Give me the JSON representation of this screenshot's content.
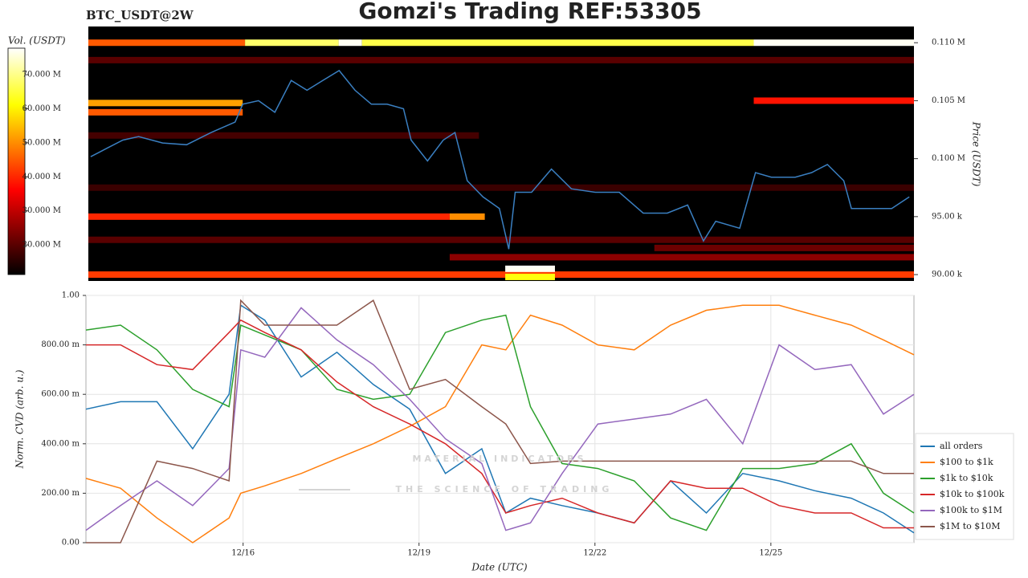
{
  "header": {
    "title": "Gomzi's Trading REF:53305",
    "subtitle": "BTC_USDT@2W"
  },
  "watermark": {
    "name": "MATERIAL INDICATORS",
    "tagline": "THE SCIENCE OF TRADING"
  },
  "chart_data": [
    {
      "type": "heatmap",
      "xlim": [
        13.32,
        27.44
      ],
      "ylim": [
        89450,
        111400
      ],
      "y_label": "Price (USDT)",
      "yticks": [
        {
          "value": 90000,
          "label": "90.00 k"
        },
        {
          "value": 95000,
          "label": "95.00 k"
        },
        {
          "value": 100000,
          "label": "0.100 M"
        },
        {
          "value": 105000,
          "label": "0.105 M"
        },
        {
          "value": 110000,
          "label": "0.110 M"
        }
      ],
      "colorbar": {
        "label": "Vol. (USDT)",
        "colormap": "hot",
        "clim": [
          11300000,
          77800000
        ],
        "ticks": [
          {
            "value": 20000000,
            "label": "20.000 M"
          },
          {
            "value": 30000000,
            "label": "30.000 M"
          },
          {
            "value": 40000000,
            "label": "40.000 M"
          },
          {
            "value": 50000000,
            "label": "50.000 M"
          },
          {
            "value": 60000000,
            "label": "60.000 M"
          },
          {
            "value": 70000000,
            "label": "70.000 M"
          }
        ]
      },
      "cells": [
        {
          "price": 108500,
          "x_start": 13.32,
          "x_end": 27.44,
          "value": 20000000
        },
        {
          "price": 102000,
          "x_start": 13.32,
          "x_end": 20.0,
          "value": 18000000
        },
        {
          "price": 97500,
          "x_start": 13.32,
          "x_end": 27.44,
          "value": 17000000
        },
        {
          "price": 93000,
          "x_start": 13.32,
          "x_end": 27.44,
          "value": 20000000
        },
        {
          "price": 91500,
          "x_start": 19.5,
          "x_end": 27.44,
          "value": 25000000
        },
        {
          "price": 92300,
          "x_start": 23.0,
          "x_end": 27.44,
          "value": 22000000
        },
        {
          "price": 110000,
          "x_start": 13.32,
          "x_end": 16.0,
          "value": 45000000
        },
        {
          "price": 110000,
          "x_start": 16.0,
          "x_end": 17.6,
          "value": 68000000
        },
        {
          "price": 110000,
          "x_start": 17.6,
          "x_end": 18.0,
          "value": 77000000
        },
        {
          "price": 110000,
          "x_start": 18.0,
          "x_end": 24.7,
          "value": 66000000
        },
        {
          "price": 110000,
          "x_start": 24.7,
          "x_end": 27.44,
          "value": 77000000
        },
        {
          "price": 104800,
          "x_start": 13.32,
          "x_end": 15.96,
          "value": 52000000
        },
        {
          "price": 104000,
          "x_start": 13.32,
          "x_end": 15.96,
          "value": 45000000
        },
        {
          "price": 105000,
          "x_start": 24.7,
          "x_end": 27.44,
          "value": 38000000
        },
        {
          "price": 95000,
          "x_start": 13.32,
          "x_end": 19.5,
          "value": 40000000
        },
        {
          "price": 95000,
          "x_start": 19.5,
          "x_end": 20.1,
          "value": 50000000
        },
        {
          "price": 90000,
          "x_start": 13.32,
          "x_end": 27.44,
          "value": 42000000
        },
        {
          "price": 90500,
          "x_start": 20.45,
          "x_end": 21.3,
          "value": 77000000
        },
        {
          "price": 89800,
          "x_start": 20.45,
          "x_end": 21.3,
          "value": 62000000
        }
      ],
      "series": [
        {
          "color": "#3a7fc1",
          "x": [
            13.36,
            13.64,
            13.91,
            14.18,
            14.59,
            15.0,
            15.42,
            15.83,
            15.96,
            16.23,
            16.51,
            16.79,
            17.06,
            17.33,
            17.61,
            17.88,
            18.16,
            18.43,
            18.71,
            18.84,
            19.12,
            19.39,
            19.59,
            19.8,
            20.07,
            20.35,
            20.51,
            20.62,
            20.9,
            21.24,
            21.58,
            21.99,
            22.4,
            22.81,
            23.22,
            23.57,
            23.84,
            24.05,
            24.46,
            24.73,
            25.0,
            25.41,
            25.69,
            25.96,
            26.24,
            26.37,
            26.79,
            27.06,
            27.36
          ],
          "values": [
            100170,
            100900,
            101600,
            101900,
            101350,
            101200,
            102250,
            103150,
            104700,
            105000,
            104000,
            106750,
            105900,
            106750,
            107600,
            105900,
            104700,
            104700,
            104300,
            101600,
            99800,
            101600,
            102250,
            98100,
            96700,
            95700,
            92200,
            97100,
            97100,
            99100,
            97400,
            97100,
            97100,
            95300,
            95300,
            96000,
            92900,
            94600,
            94000,
            98800,
            98400,
            98400,
            98800,
            99500,
            98100,
            95700,
            95700,
            95700,
            96700
          ]
        }
      ]
    },
    {
      "type": "line",
      "xlim": [
        13.32,
        27.44
      ],
      "ylim": [
        0,
        1
      ],
      "x_label": "Date (UTC)",
      "y_label": "Norm. CVD (arb. u.)",
      "grid": true,
      "legend": "right",
      "xticks": [
        {
          "value": 16,
          "label": "12/16"
        },
        {
          "value": 19,
          "label": "12/19"
        },
        {
          "value": 22,
          "label": "12/22"
        },
        {
          "value": 25,
          "label": "12/25"
        }
      ],
      "yticks": [
        {
          "value": 0,
          "label": "0.00"
        },
        {
          "value": 0.2,
          "label": "200.00 m"
        },
        {
          "value": 0.4,
          "label": "400.00 m"
        },
        {
          "value": 0.6,
          "label": "600.00 m"
        },
        {
          "value": 0.8,
          "label": "800.00 m"
        },
        {
          "value": 1,
          "label": "1.00"
        }
      ],
      "x": [
        13.32,
        13.91,
        14.53,
        15.14,
        15.76,
        15.96,
        16.37,
        16.99,
        17.6,
        18.22,
        18.84,
        19.45,
        20.07,
        20.48,
        20.9,
        21.44,
        22.05,
        22.67,
        23.29,
        23.9,
        24.52,
        25.14,
        25.75,
        26.37,
        26.92,
        27.44
      ],
      "series": [
        {
          "name": "all orders",
          "color": "#1f77b4",
          "values": [
            0.54,
            0.57,
            0.57,
            0.38,
            0.6,
            0.96,
            0.9,
            0.67,
            0.77,
            0.64,
            0.54,
            0.28,
            0.38,
            0.12,
            0.18,
            0.15,
            0.12,
            0.08,
            0.25,
            0.12,
            0.28,
            0.25,
            0.21,
            0.18,
            0.12,
            0.04
          ]
        },
        {
          "name": "$100 to $1k",
          "color": "#ff7f0e",
          "values": [
            0.26,
            0.22,
            0.1,
            0.0,
            0.1,
            0.2,
            0.23,
            0.28,
            0.34,
            0.4,
            0.47,
            0.55,
            0.8,
            0.78,
            0.92,
            0.88,
            0.8,
            0.78,
            0.88,
            0.94,
            0.96,
            0.96,
            0.92,
            0.88,
            0.82,
            0.76
          ]
        },
        {
          "name": "$1k to $10k",
          "color": "#2ca02c",
          "values": [
            0.86,
            0.88,
            0.78,
            0.62,
            0.55,
            0.88,
            0.84,
            0.78,
            0.62,
            0.58,
            0.6,
            0.85,
            0.9,
            0.92,
            0.55,
            0.32,
            0.3,
            0.25,
            0.1,
            0.05,
            0.3,
            0.3,
            0.32,
            0.4,
            0.2,
            0.12
          ]
        },
        {
          "name": "$10k to $100k",
          "color": "#d62728",
          "values": [
            0.8,
            0.8,
            0.72,
            0.7,
            0.85,
            0.9,
            0.85,
            0.78,
            0.65,
            0.55,
            0.48,
            0.4,
            0.28,
            0.12,
            0.15,
            0.18,
            0.12,
            0.08,
            0.25,
            0.22,
            0.22,
            0.15,
            0.12,
            0.12,
            0.06,
            0.06
          ]
        },
        {
          "name": "$100k to $1M",
          "color": "#9467bd",
          "values": [
            0.05,
            0.15,
            0.25,
            0.15,
            0.3,
            0.78,
            0.75,
            0.95,
            0.82,
            0.72,
            0.58,
            0.42,
            0.32,
            0.05,
            0.08,
            0.28,
            0.48,
            0.5,
            0.52,
            0.58,
            0.4,
            0.8,
            0.7,
            0.72,
            0.52,
            0.6
          ]
        },
        {
          "name": "$1M to $10M",
          "color": "#8c564b",
          "values": [
            0.0,
            0.0,
            0.33,
            0.3,
            0.25,
            0.98,
            0.88,
            0.88,
            0.88,
            0.98,
            0.62,
            0.66,
            0.55,
            0.48,
            0.32,
            0.33,
            0.33,
            0.33,
            0.33,
            0.33,
            0.33,
            0.33,
            0.33,
            0.33,
            0.28,
            0.28
          ]
        }
      ]
    }
  ]
}
